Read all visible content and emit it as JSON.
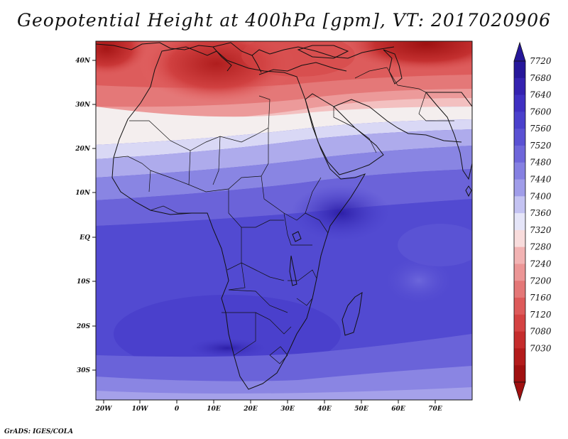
{
  "title": "Geopotential Height at 400hPa [gpm], VT: 2017020906",
  "credit": "GrADS: IGES/COLA",
  "map": {
    "lon_ticks": [
      "20W",
      "10W",
      "0",
      "10E",
      "20E",
      "30E",
      "40E",
      "50E",
      "60E",
      "70E"
    ],
    "lat_ticks": [
      "40N",
      "30N",
      "20N",
      "10N",
      "EQ",
      "10S",
      "20S",
      "30S"
    ]
  },
  "colorbar": {
    "levels": [
      "7720",
      "7680",
      "7640",
      "7600",
      "7560",
      "7520",
      "7480",
      "7440",
      "7400",
      "7360",
      "7320",
      "7280",
      "7240",
      "7200",
      "7160",
      "7120",
      "7080",
      "7030"
    ],
    "colors": [
      "#26179a",
      "#3422b0",
      "#3f30c2",
      "#4a40cc",
      "#5a51d3",
      "#6e66da",
      "#8580e2",
      "#a09de9",
      "#c4c3f2",
      "#e5e5f8",
      "#f8dcdc",
      "#f2b3b3",
      "#ec9696",
      "#e47777",
      "#dd5a5a",
      "#d44242",
      "#c52c2c",
      "#b31b1b",
      "#a01010"
    ]
  }
}
